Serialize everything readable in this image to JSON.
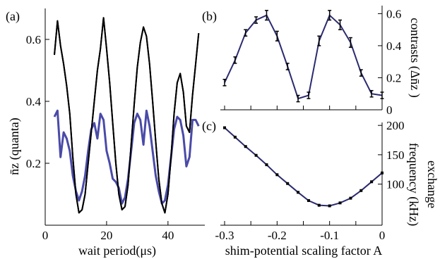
{
  "chart_data": [
    {
      "panel": "(a)",
      "type": "line",
      "xlabel": "wait period(μs)",
      "ylabel": "n̄z (quanta)",
      "xlim": [
        0,
        52
      ],
      "ylim": [
        0,
        0.7
      ],
      "xticks": [
        "0",
        "20",
        "40"
      ],
      "yticks": [
        "0.2",
        "0.4",
        "0.6"
      ],
      "series": [
        {
          "color": "#000000",
          "x": [
            3,
            4,
            5,
            6,
            7,
            8,
            9,
            10,
            11,
            12,
            13,
            14,
            15,
            16,
            17,
            18,
            19,
            20,
            21,
            22,
            23,
            24,
            25,
            26,
            27,
            28,
            29,
            30,
            31,
            32,
            33,
            34,
            35,
            36,
            37,
            38,
            39,
            40,
            41,
            42,
            43,
            44,
            45,
            46,
            47,
            48,
            49,
            50
          ],
          "y": [
            0.55,
            0.66,
            0.58,
            0.52,
            0.45,
            0.36,
            0.22,
            0.1,
            0.04,
            0.05,
            0.1,
            0.2,
            0.3,
            0.4,
            0.5,
            0.57,
            0.67,
            0.57,
            0.46,
            0.33,
            0.2,
            0.1,
            0.05,
            0.06,
            0.13,
            0.26,
            0.39,
            0.51,
            0.59,
            0.64,
            0.61,
            0.52,
            0.4,
            0.27,
            0.15,
            0.07,
            0.04,
            0.1,
            0.22,
            0.36,
            0.46,
            0.49,
            0.43,
            0.32,
            0.3,
            0.42,
            0.52,
            0.62
          ]
        },
        {
          "color": "#4a4aa8",
          "x": [
            3,
            4,
            5,
            6,
            7,
            8,
            9,
            10,
            11,
            12,
            13,
            14,
            15,
            16,
            17,
            18,
            19,
            20,
            21,
            22,
            23,
            24,
            25,
            26,
            27,
            28,
            29,
            30,
            31,
            32,
            33,
            34,
            35,
            36,
            37,
            38,
            39,
            40,
            41,
            42,
            43,
            44,
            45,
            46,
            47,
            48,
            49,
            50
          ],
          "y": [
            0.35,
            0.37,
            0.22,
            0.3,
            0.28,
            0.24,
            0.16,
            0.11,
            0.08,
            0.11,
            0.16,
            0.24,
            0.31,
            0.33,
            0.28,
            0.36,
            0.34,
            0.24,
            0.2,
            0.15,
            0.14,
            0.12,
            0.07,
            0.09,
            0.15,
            0.24,
            0.33,
            0.36,
            0.34,
            0.26,
            0.37,
            0.32,
            0.24,
            0.16,
            0.11,
            0.07,
            0.08,
            0.13,
            0.22,
            0.31,
            0.35,
            0.34,
            0.29,
            0.19,
            0.22,
            0.34,
            0.34,
            0.32
          ]
        }
      ]
    },
    {
      "panel": "(b)",
      "type": "line",
      "ylabel": "contrasts (Δn̄z )",
      "xlim": [
        -0.3,
        0
      ],
      "ylim": [
        0,
        0.65
      ],
      "yticks": [
        "0",
        "0.2",
        "0.4",
        "0.6"
      ],
      "error_bars": true,
      "series": [
        {
          "color": "#2b2b70",
          "x": [
            -0.3,
            -0.28,
            -0.26,
            -0.24,
            -0.22,
            -0.2,
            -0.18,
            -0.16,
            -0.14,
            -0.12,
            -0.1,
            -0.08,
            -0.06,
            -0.04,
            -0.02,
            0.0
          ],
          "y": [
            0.17,
            0.31,
            0.48,
            0.56,
            0.59,
            0.46,
            0.27,
            0.07,
            0.09,
            0.43,
            0.59,
            0.53,
            0.42,
            0.23,
            0.1,
            0.09
          ],
          "err": [
            0.02,
            0.02,
            0.02,
            0.02,
            0.03,
            0.03,
            0.02,
            0.02,
            0.02,
            0.03,
            0.03,
            0.03,
            0.03,
            0.02,
            0.02,
            0.02
          ]
        }
      ]
    },
    {
      "panel": "(c)",
      "type": "line",
      "xlabel": "shim-potential scaling factor A",
      "ylabel_line1": "exchange",
      "ylabel_line2": "frequency (kHz)",
      "xlim": [
        -0.3,
        0
      ],
      "ylim": [
        30,
        205
      ],
      "xticks": [
        "-0.3",
        "-0.2",
        "-0.1",
        "0"
      ],
      "yticks": [
        "100",
        "150",
        "200"
      ],
      "series": [
        {
          "color": "#2b2b70",
          "x": [
            -0.3,
            -0.28,
            -0.26,
            -0.24,
            -0.22,
            -0.2,
            -0.18,
            -0.16,
            -0.14,
            -0.12,
            -0.1,
            -0.08,
            -0.06,
            -0.04,
            -0.02,
            0.0
          ],
          "y": [
            196,
            180,
            164,
            149,
            133,
            116,
            101,
            86,
            72,
            64,
            63,
            68,
            76,
            89,
            104,
            119
          ]
        }
      ]
    }
  ]
}
